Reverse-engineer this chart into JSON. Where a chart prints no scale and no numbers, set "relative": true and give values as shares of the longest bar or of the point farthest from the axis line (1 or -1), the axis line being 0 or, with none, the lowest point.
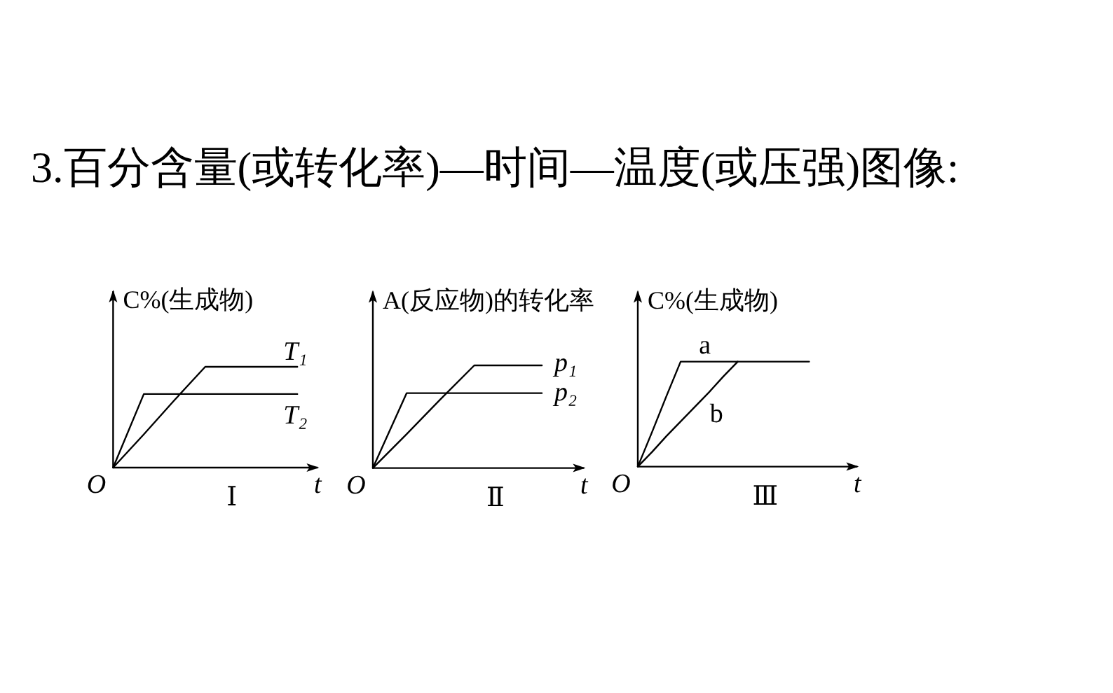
{
  "chart_data": [
    {
      "type": "other",
      "title": "3.百分含量(或转化率)—时间—温度(或压强)图像:"
    },
    {
      "type": "line",
      "relative": true,
      "ylabel": "C%(生成物)",
      "xlabel": "t",
      "categories": [
        null,
        null,
        null,
        null,
        null,
        null,
        null
      ],
      "series": [
        {
          "name": "T₁",
          "color": "#000000",
          "values": [
            0,
            0.33,
            0.67,
            1,
            1,
            1,
            1
          ]
        },
        {
          "name": "T₂",
          "color": "#000000",
          "values": [
            0,
            0.73,
            0.73,
            0.73,
            0.73,
            0.73,
            0.73
          ]
        }
      ],
      "annotations": [
        "O",
        "Ⅰ"
      ]
    },
    {
      "type": "line",
      "relative": true,
      "ylabel": "A(反应物)的转化率",
      "xlabel": "t",
      "categories": [
        null,
        null,
        null,
        null,
        null,
        null
      ],
      "series": [
        {
          "name": "p₁",
          "color": "#000000",
          "values": [
            0,
            0.33,
            0.67,
            1,
            1,
            1
          ]
        },
        {
          "name": "p₂",
          "color": "#000000",
          "values": [
            0,
            0.73,
            0.73,
            0.73,
            0.73,
            0.73
          ]
        }
      ],
      "annotations": [
        "O",
        "Ⅱ"
      ]
    },
    {
      "type": "line",
      "relative": true,
      "ylabel": "C%(生成物)",
      "xlabel": "t",
      "categories": [
        null,
        null,
        null,
        null,
        null,
        null,
        null,
        null,
        null,
        null,
        null,
        null,
        null
      ],
      "series": [
        {
          "name": "a",
          "color": "#000000",
          "values": [
            0,
            0.33,
            0.67,
            1,
            1,
            1,
            1,
            1,
            1,
            1,
            1,
            1,
            1
          ]
        },
        {
          "name": "b",
          "color": "#000000",
          "values": [
            0,
            0.14,
            0.29,
            0.43,
            0.57,
            0.71,
            0.86,
            1,
            null,
            null,
            null,
            null,
            null
          ]
        }
      ],
      "annotations": [
        "O",
        "Ⅲ"
      ]
    }
  ]
}
